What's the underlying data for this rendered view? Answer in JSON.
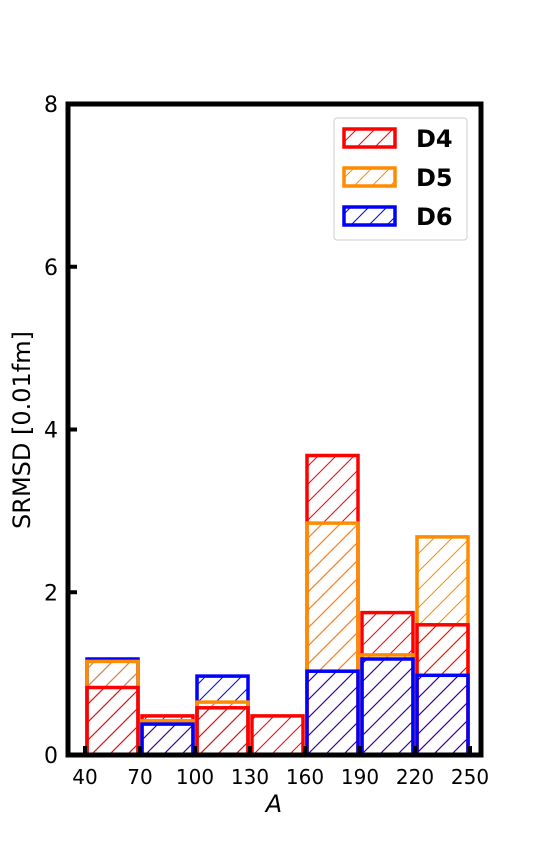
{
  "chart_data": {
    "type": "bar",
    "xlabel": "A",
    "ylabel": "SRMSD [0.01fm]",
    "ylim": [
      0,
      8
    ],
    "xlim": [
      40,
      250
    ],
    "yticks": [
      0,
      2,
      4,
      6,
      8
    ],
    "xticks": [
      40,
      70,
      100,
      130,
      160,
      190,
      220,
      250
    ],
    "bins": [
      [
        40,
        70
      ],
      [
        70,
        100
      ],
      [
        100,
        130
      ],
      [
        130,
        160
      ],
      [
        160,
        190
      ],
      [
        190,
        220
      ],
      [
        220,
        250
      ]
    ],
    "categories": [
      "40-70",
      "70-100",
      "100-130",
      "130-160",
      "160-190",
      "190-220",
      "220-250"
    ],
    "series": [
      {
        "name": "D4",
        "color": "#ff0000",
        "values": [
          0.83,
          0.48,
          0.58,
          0.48,
          3.68,
          1.75,
          1.6
        ]
      },
      {
        "name": "D5",
        "color": "#ff8c00",
        "values": [
          1.15,
          0.42,
          0.65,
          0.0,
          2.85,
          1.23,
          2.68
        ]
      },
      {
        "name": "D6",
        "color": "#0000ff",
        "values": [
          1.18,
          0.38,
          0.97,
          0.0,
          1.03,
          1.18,
          0.98
        ]
      }
    ],
    "legend_position": "top-right",
    "grid": false,
    "hatch": "forward-diagonal"
  }
}
